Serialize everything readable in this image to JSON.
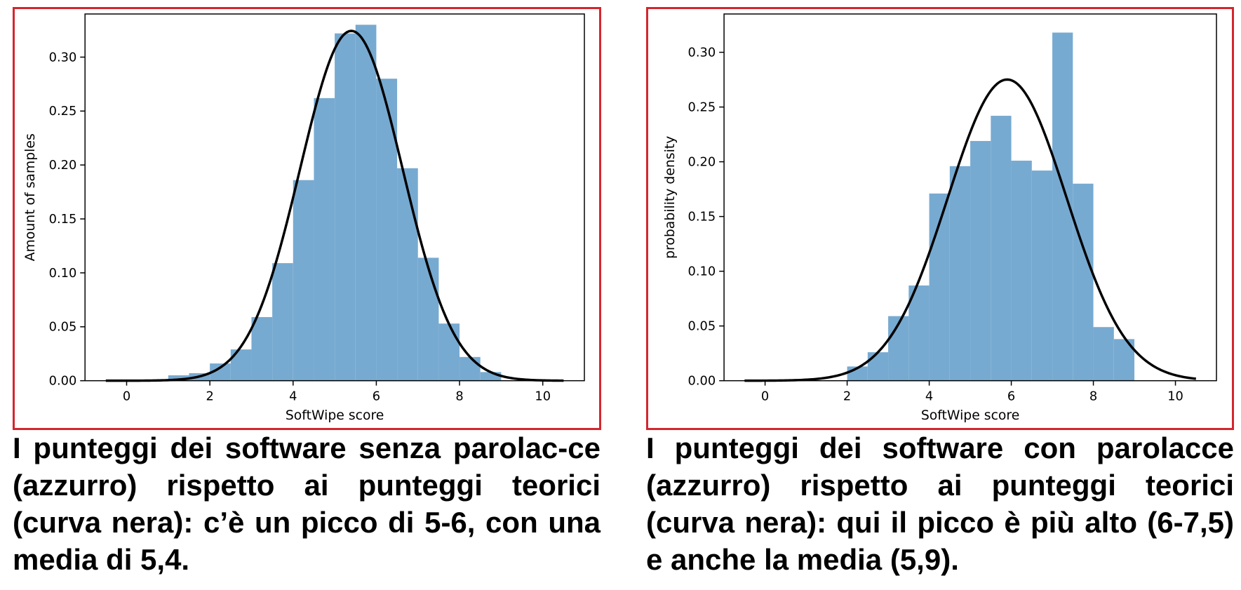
{
  "chart_data": [
    {
      "type": "bar",
      "xlabel": "SoftWipe score",
      "ylabel": "Amount of samples",
      "xlim": [
        -1,
        11
      ],
      "ylim": [
        0,
        0.34
      ],
      "xticks": [
        0,
        2,
        4,
        6,
        8,
        10
      ],
      "yticks": [
        0.0,
        0.05,
        0.1,
        0.15,
        0.2,
        0.25,
        0.3
      ],
      "ytick_labels": [
        "0.00",
        "0.05",
        "0.10",
        "0.15",
        "0.20",
        "0.25",
        "0.30"
      ],
      "bin_width": 0.5,
      "bins": [
        {
          "x": 1.0,
          "value": 0.005
        },
        {
          "x": 1.5,
          "value": 0.007
        },
        {
          "x": 2.0,
          "value": 0.016
        },
        {
          "x": 2.5,
          "value": 0.029
        },
        {
          "x": 3.0,
          "value": 0.059
        },
        {
          "x": 3.5,
          "value": 0.109
        },
        {
          "x": 4.0,
          "value": 0.186
        },
        {
          "x": 4.5,
          "value": 0.262
        },
        {
          "x": 5.0,
          "value": 0.322
        },
        {
          "x": 5.5,
          "value": 0.33
        },
        {
          "x": 6.0,
          "value": 0.28
        },
        {
          "x": 6.5,
          "value": 0.197
        },
        {
          "x": 7.0,
          "value": 0.114
        },
        {
          "x": 7.5,
          "value": 0.053
        },
        {
          "x": 8.0,
          "value": 0.022
        },
        {
          "x": 8.5,
          "value": 0.008
        }
      ],
      "curve": {
        "type": "normal",
        "mean": 5.4,
        "std": 1.23,
        "x_range": [
          -0.5,
          10.5
        ]
      },
      "colors": {
        "bars": "#77aad1",
        "curve": "#000000"
      }
    },
    {
      "type": "bar",
      "xlabel": "SoftWipe score",
      "ylabel": "probability density",
      "xlim": [
        -1,
        11
      ],
      "ylim": [
        0,
        0.335
      ],
      "xticks": [
        0,
        2,
        4,
        6,
        8,
        10
      ],
      "yticks": [
        0.0,
        0.05,
        0.1,
        0.15,
        0.2,
        0.25,
        0.3
      ],
      "ytick_labels": [
        "0.00",
        "0.05",
        "0.10",
        "0.15",
        "0.20",
        "0.25",
        "0.30"
      ],
      "bin_width": 0.5,
      "bins": [
        {
          "x": 2.0,
          "value": 0.013
        },
        {
          "x": 2.5,
          "value": 0.026
        },
        {
          "x": 3.0,
          "value": 0.059
        },
        {
          "x": 3.5,
          "value": 0.087
        },
        {
          "x": 4.0,
          "value": 0.171
        },
        {
          "x": 4.5,
          "value": 0.196
        },
        {
          "x": 5.0,
          "value": 0.219
        },
        {
          "x": 5.5,
          "value": 0.242
        },
        {
          "x": 6.0,
          "value": 0.201
        },
        {
          "x": 6.5,
          "value": 0.192
        },
        {
          "x": 7.0,
          "value": 0.318
        },
        {
          "x": 7.5,
          "value": 0.18
        },
        {
          "x": 8.0,
          "value": 0.049
        },
        {
          "x": 8.5,
          "value": 0.038
        }
      ],
      "curve": {
        "type": "normal",
        "mean": 5.9,
        "std": 1.45,
        "x_range": [
          -0.5,
          10.5
        ]
      },
      "colors": {
        "bars": "#77aad1",
        "curve": "#000000"
      }
    }
  ],
  "captions": {
    "left": "I punteggi dei software senza parolac-ce (azzurro) rispetto ai punteggi teorici (curva nera): c’è un picco di 5-6, con una media di 5,4.",
    "right": "I punteggi dei software con parolacce (azzurro) rispetto ai punteggi teorici (curva nera): qui il picco è più alto (6-7,5) e anche la media (5,9)."
  }
}
